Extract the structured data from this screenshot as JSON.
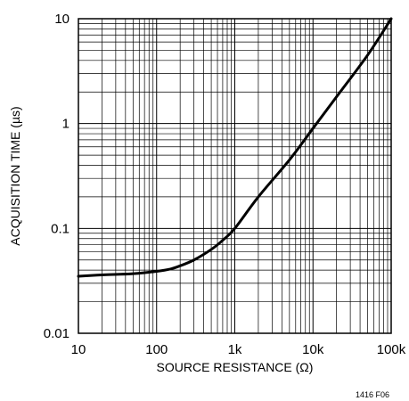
{
  "chart_data": {
    "type": "line",
    "title": "",
    "xlabel": "SOURCE RESISTANCE (Ω)",
    "ylabel": "ACQUISITION TIME (µs)",
    "x_scale": "log",
    "y_scale": "log",
    "xlim": [
      10,
      100000
    ],
    "ylim": [
      0.01,
      10
    ],
    "x_ticks": [
      10,
      100,
      1000,
      10000,
      100000
    ],
    "x_tick_labels": [
      "10",
      "100",
      "1k",
      "10k",
      "100k"
    ],
    "y_ticks": [
      0.01,
      0.1,
      1,
      10
    ],
    "y_tick_labels": [
      "0.01",
      "0.1",
      "1",
      "10"
    ],
    "grid": true,
    "series": [
      {
        "name": "",
        "x": [
          10,
          20,
          50,
          100,
          150,
          200,
          300,
          500,
          700,
          1000,
          2000,
          5000,
          10000,
          20000,
          50000,
          100000
        ],
        "y": [
          0.035,
          0.036,
          0.037,
          0.039,
          0.041,
          0.044,
          0.05,
          0.063,
          0.077,
          0.1,
          0.2,
          0.45,
          0.9,
          1.8,
          4.5,
          10
        ]
      }
    ]
  },
  "figure_id": "1416 F06"
}
